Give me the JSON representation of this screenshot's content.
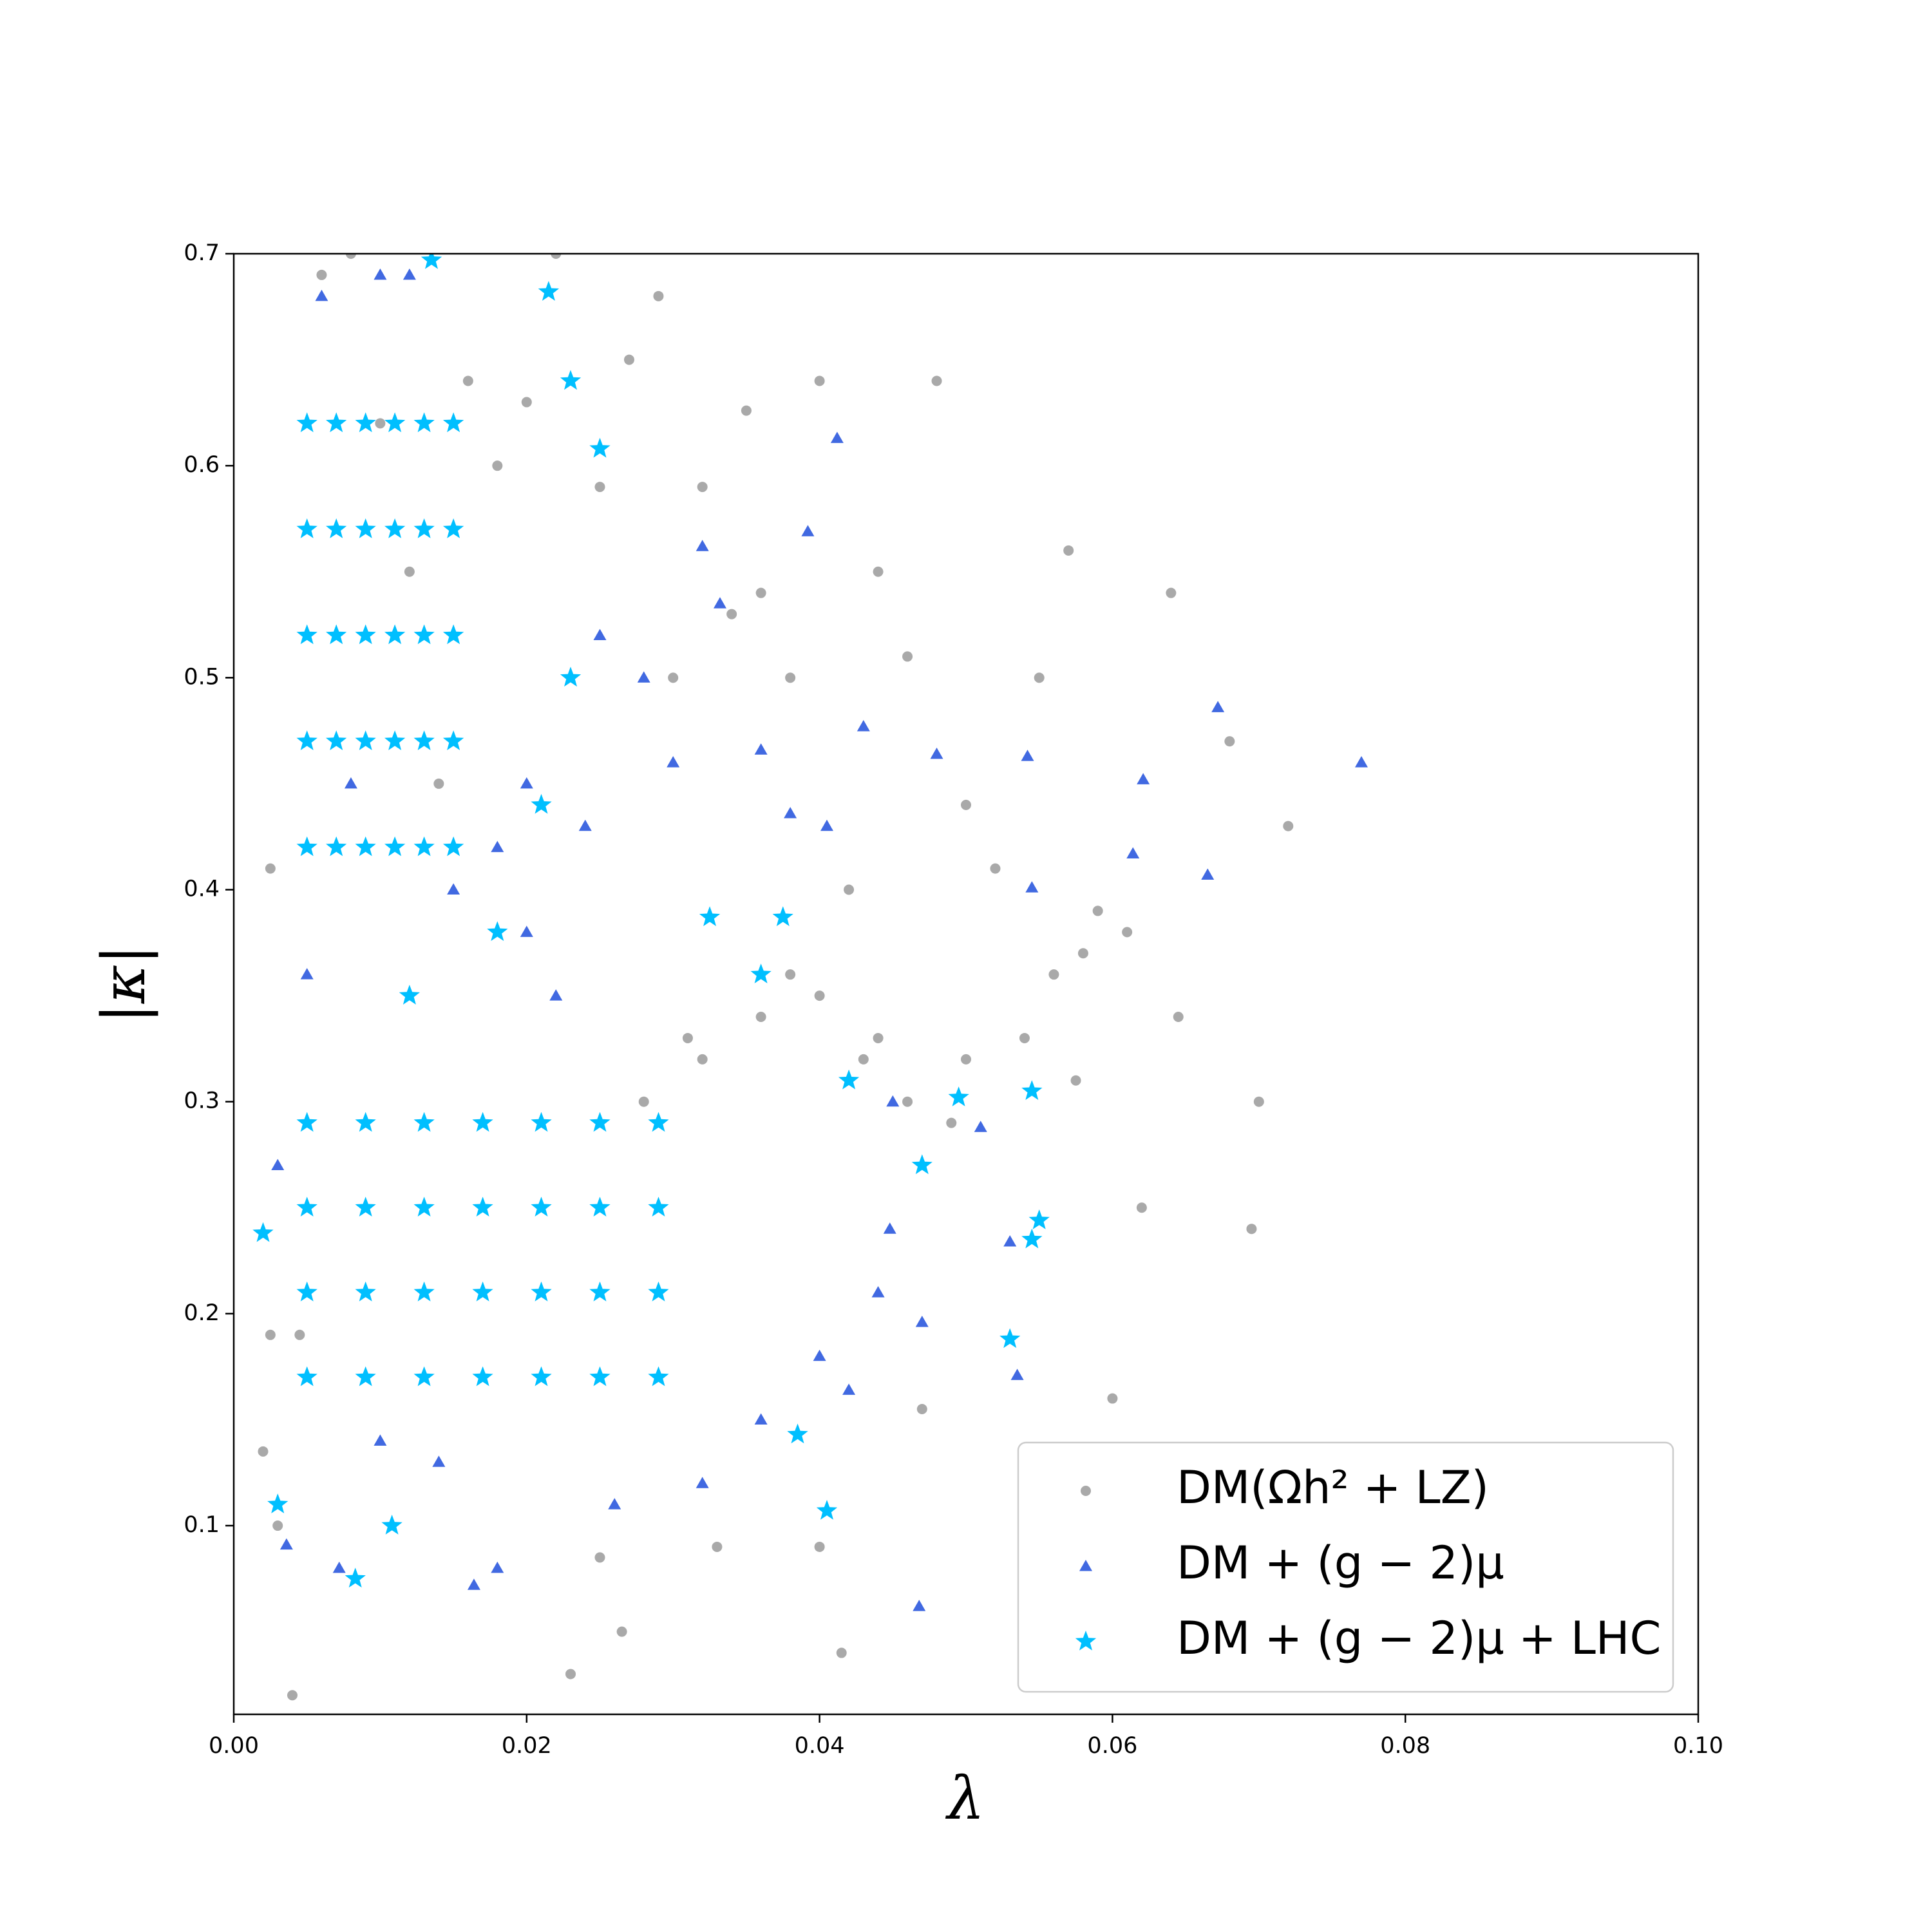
{
  "chart_data": {
    "type": "scatter",
    "x_label": "λ",
    "y_label": "|κ|",
    "xlim": [
      0,
      0.1
    ],
    "ylim": [
      0.011,
      0.7
    ],
    "xticks": [
      {
        "value": 0,
        "label": "0.00"
      },
      {
        "value": 0.02,
        "label": "0.02"
      },
      {
        "value": 0.04,
        "label": "0.04"
      },
      {
        "value": 0.06,
        "label": "0.06"
      },
      {
        "value": 0.08,
        "label": "0.08"
      },
      {
        "value": 0.1,
        "label": "0.10"
      }
    ],
    "yticks": [
      0.1,
      0.2,
      0.3,
      0.4,
      0.5,
      0.6,
      0.7
    ],
    "legend": "lower right",
    "series": [
      {
        "name": "DM(Ωh² + LZ)",
        "color": "#a9a9a9",
        "marker": "circle",
        "x": [
          0.004,
          0.006,
          0.008,
          0.01,
          0.012,
          0.014,
          0.016,
          0.018,
          0.02,
          0.022,
          0.025,
          0.027,
          0.03,
          0.032,
          0.034,
          0.036,
          0.038,
          0.04,
          0.042,
          0.044,
          0.046,
          0.048,
          0.05,
          0.052,
          0.055,
          0.057,
          0.059,
          0.062,
          0.064,
          0.068,
          0.07,
          0.072,
          0.0045,
          0.023,
          0.0415,
          0.049,
          0.0575,
          0.0645,
          0.0695,
          0.06,
          0.029,
          0.035,
          0.025,
          0.0265,
          0.04,
          0.033,
          0.047,
          0.038,
          0.031,
          0.043,
          0.028,
          0.032,
          0.036,
          0.04,
          0.044,
          0.046,
          0.05,
          0.054,
          0.056,
          0.058,
          0.061,
          0.0025,
          0.003,
          0.002,
          0.0025
        ],
        "y": [
          0.02,
          0.69,
          0.7,
          0.62,
          0.55,
          0.45,
          0.64,
          0.6,
          0.63,
          0.7,
          0.59,
          0.65,
          0.5,
          0.59,
          0.53,
          0.54,
          0.5,
          0.64,
          0.4,
          0.55,
          0.51,
          0.64,
          0.44,
          0.41,
          0.5,
          0.56,
          0.39,
          0.25,
          0.54,
          0.47,
          0.3,
          0.43,
          0.19,
          0.03,
          0.04,
          0.29,
          0.31,
          0.34,
          0.24,
          0.16,
          0.68,
          0.626,
          0.085,
          0.05,
          0.09,
          0.09,
          0.155,
          0.36,
          0.33,
          0.32,
          0.3,
          0.32,
          0.34,
          0.35,
          0.33,
          0.3,
          0.32,
          0.33,
          0.36,
          0.37,
          0.38,
          0.41,
          0.1,
          0.135,
          0.19
        ]
      },
      {
        "name": "DM + (g − 2)μ",
        "color": "#4169e1",
        "marker": "triangle",
        "x": [
          0.0412,
          0.0392,
          0.0332,
          0.0672,
          0.077,
          0.0621,
          0.0542,
          0.0614,
          0.0665,
          0.0545,
          0.0468,
          0.0164,
          0.0036,
          0.0072,
          0.048,
          0.047,
          0.0535,
          0.042,
          0.051,
          0.053,
          0.032,
          0.036,
          0.043,
          0.0448,
          0.038,
          0.0405,
          0.045,
          0.03,
          0.028,
          0.025,
          0.006,
          0.01,
          0.012,
          0.008,
          0.015,
          0.018,
          0.02,
          0.022,
          0.005,
          0.003,
          0.01,
          0.014,
          0.018,
          0.026,
          0.032,
          0.036,
          0.04,
          0.044,
          0.02,
          0.024
        ],
        "y": [
          0.613,
          0.569,
          0.535,
          0.486,
          0.46,
          0.452,
          0.463,
          0.417,
          0.407,
          0.401,
          0.062,
          0.072,
          0.091,
          0.08,
          0.464,
          0.196,
          0.171,
          0.164,
          0.288,
          0.234,
          0.562,
          0.466,
          0.477,
          0.24,
          0.436,
          0.43,
          0.3,
          0.46,
          0.5,
          0.52,
          0.68,
          0.69,
          0.69,
          0.45,
          0.4,
          0.42,
          0.38,
          0.35,
          0.36,
          0.27,
          0.14,
          0.13,
          0.08,
          0.11,
          0.12,
          0.15,
          0.18,
          0.21,
          0.45,
          0.43
        ]
      },
      {
        "name": "DM + (g − 2)μ + LHC",
        "color": "#00bfff",
        "marker": "star",
        "x": [
          0.005,
          0.007,
          0.009,
          0.011,
          0.013,
          0.015,
          0.005,
          0.007,
          0.009,
          0.011,
          0.013,
          0.015,
          0.005,
          0.007,
          0.009,
          0.011,
          0.013,
          0.015,
          0.005,
          0.007,
          0.009,
          0.011,
          0.013,
          0.015,
          0.005,
          0.007,
          0.009,
          0.011,
          0.013,
          0.015,
          0.005,
          0.009,
          0.013,
          0.017,
          0.021,
          0.025,
          0.029,
          0.005,
          0.009,
          0.013,
          0.017,
          0.021,
          0.025,
          0.029,
          0.005,
          0.009,
          0.013,
          0.017,
          0.021,
          0.025,
          0.029,
          0.005,
          0.009,
          0.013,
          0.017,
          0.021,
          0.025,
          0.029,
          0.0083,
          0.0108,
          0.0405,
          0.053,
          0.0545,
          0.055,
          0.0545,
          0.0495,
          0.0375,
          0.0325,
          0.0215,
          0.0135,
          0.025,
          0.023,
          0.0385,
          0.047,
          0.042,
          0.036,
          0.002,
          0.003,
          0.012,
          0.018,
          0.021,
          0.023
        ],
        "y": [
          0.42,
          0.42,
          0.42,
          0.42,
          0.42,
          0.42,
          0.47,
          0.47,
          0.47,
          0.47,
          0.47,
          0.47,
          0.52,
          0.52,
          0.52,
          0.52,
          0.52,
          0.52,
          0.57,
          0.57,
          0.57,
          0.57,
          0.57,
          0.57,
          0.62,
          0.62,
          0.62,
          0.62,
          0.62,
          0.62,
          0.17,
          0.17,
          0.17,
          0.17,
          0.17,
          0.17,
          0.17,
          0.21,
          0.21,
          0.21,
          0.21,
          0.21,
          0.21,
          0.21,
          0.25,
          0.25,
          0.25,
          0.25,
          0.25,
          0.25,
          0.25,
          0.29,
          0.29,
          0.29,
          0.29,
          0.29,
          0.29,
          0.29,
          0.075,
          0.1,
          0.107,
          0.188,
          0.235,
          0.244,
          0.305,
          0.302,
          0.387,
          0.387,
          0.682,
          0.697,
          0.608,
          0.64,
          0.143,
          0.27,
          0.31,
          0.36,
          0.238,
          0.11,
          0.35,
          0.38,
          0.44,
          0.5
        ]
      }
    ]
  }
}
